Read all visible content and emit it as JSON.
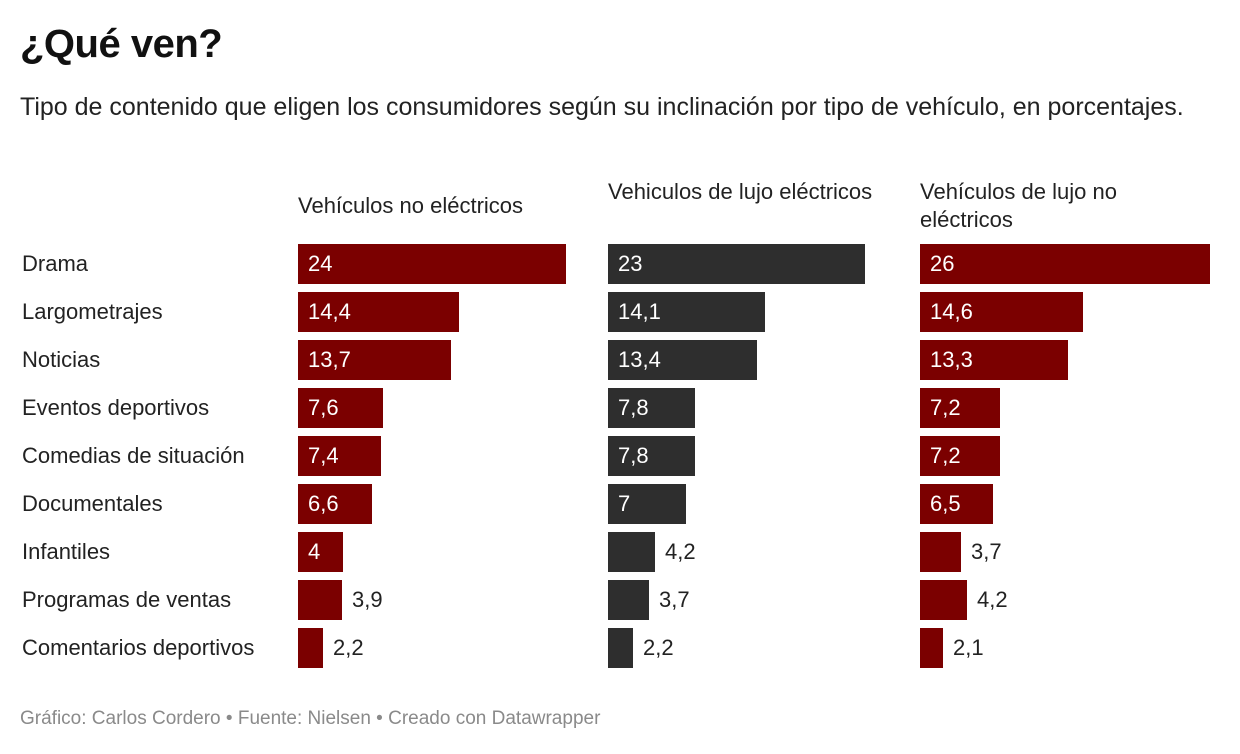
{
  "title": "¿Qué ven?",
  "subtitle": "Tipo de contenido que eligen los consumidores según su inclinación por tipo de vehículo, en porcentajes.",
  "footer": "Gráfico: Carlos Cordero • Fuente: Nielsen • Creado con Datawrapper",
  "colors": {
    "red": "#7b0000",
    "dark": "#2e2e2e",
    "label_inside": "#ffffff",
    "label_outside": "#222222"
  },
  "chart_data": {
    "type": "bar",
    "orientation": "horizontal",
    "layout": "small-multiples",
    "title": "¿Qué ven?",
    "subtitle": "Tipo de contenido que eligen los consumidores según su inclinación por tipo de vehículo, en porcentajes.",
    "categories": [
      "Drama",
      "Largometrajes",
      "Noticias",
      "Eventos deportivos",
      "Comedias de situación",
      "Documentales",
      "Infantiles",
      "Programas de ventas",
      "Comentarios deportivos"
    ],
    "xlim": [
      0,
      26
    ],
    "series": [
      {
        "name": "Vehículos no eléctricos",
        "color": "#7b0000",
        "values": [
          24,
          14.4,
          13.7,
          7.6,
          7.4,
          6.6,
          4,
          3.9,
          2.2
        ],
        "labels": [
          "24",
          "14,4",
          "13,7",
          "7,6",
          "7,4",
          "6,6",
          "4",
          "3,9",
          "2,2"
        ]
      },
      {
        "name": "Vehiculos de lujo eléctricos",
        "color": "#2e2e2e",
        "values": [
          23,
          14.1,
          13.4,
          7.8,
          7.8,
          7,
          4.2,
          3.7,
          2.2
        ],
        "labels": [
          "23",
          "14,1",
          "13,4",
          "7,8",
          "7,8",
          "7",
          "4,2",
          "3,7",
          "2,2"
        ]
      },
      {
        "name": "Vehículos de lujo no eléctricos",
        "color": "#7b0000",
        "values": [
          26,
          14.6,
          13.3,
          7.2,
          7.2,
          6.5,
          3.7,
          4.2,
          2.1
        ],
        "labels": [
          "26",
          "14,6",
          "13,3",
          "7,2",
          "7,2",
          "6,5",
          "3,7",
          "4,2",
          "2,1"
        ]
      }
    ]
  }
}
